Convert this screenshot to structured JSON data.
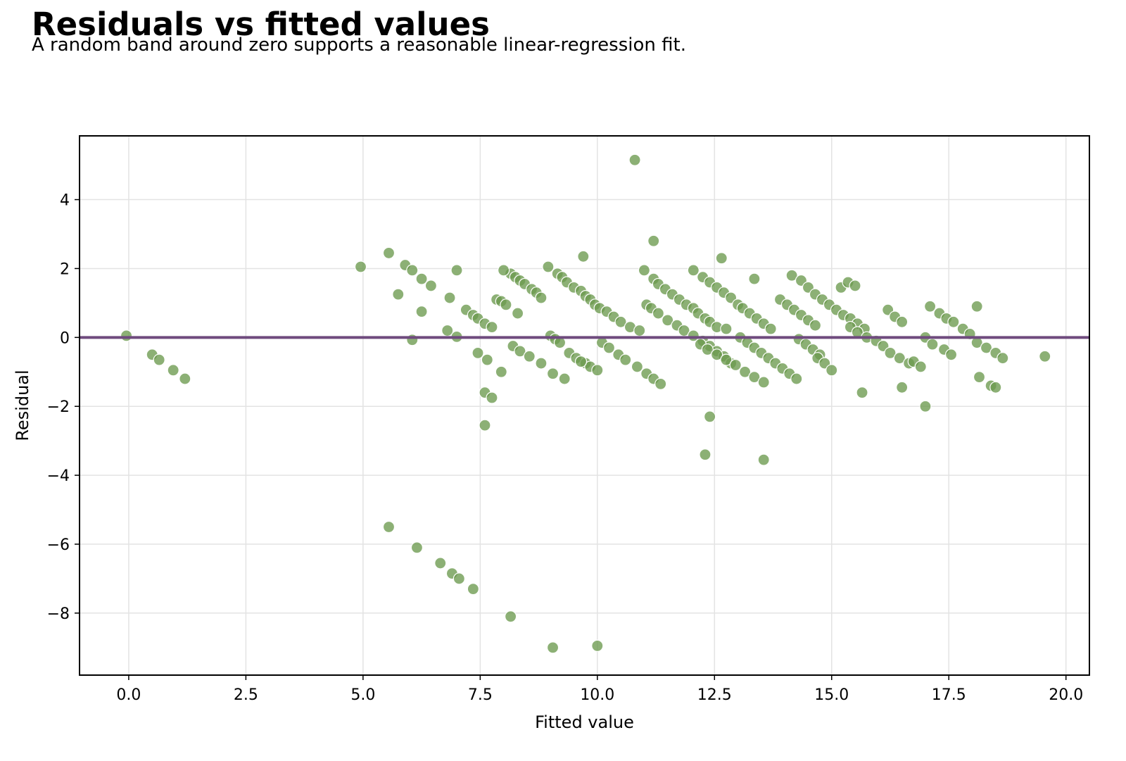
{
  "chart_data": {
    "type": "scatter",
    "title": "Residuals vs fitted values",
    "subtitle": "A random band around zero supports a reasonable linear-regression fit.",
    "xlabel": "Fitted value",
    "ylabel": "Residual",
    "xlim": [
      -1.05,
      20.5
    ],
    "ylim": [
      -9.8,
      5.85
    ],
    "xticks": [
      0.0,
      2.5,
      5.0,
      7.5,
      10.0,
      12.5,
      15.0,
      17.5,
      20.0
    ],
    "xtick_labels": [
      "0.0",
      "2.5",
      "5.0",
      "7.5",
      "10.0",
      "12.5",
      "15.0",
      "17.5",
      "20.0"
    ],
    "yticks": [
      -8,
      -6,
      -4,
      -2,
      0,
      2,
      4
    ],
    "ytick_labels": [
      "−8",
      "−6",
      "−4",
      "−2",
      "0",
      "2",
      "4"
    ],
    "grid": true,
    "reference_line": {
      "y": 0,
      "color": "#6f4b7e"
    },
    "point_color": "#6b9a4e",
    "x": [
      -0.05,
      0.5,
      0.65,
      0.95,
      1.2,
      4.95,
      5.55,
      5.75,
      5.9,
      6.05,
      6.25,
      6.45,
      6.05,
      6.25,
      6.8,
      6.85,
      7.0,
      7.0,
      7.2,
      7.35,
      7.45,
      7.6,
      7.75,
      7.45,
      7.65,
      7.6,
      7.75,
      7.6,
      7.85,
      7.95,
      8.05,
      8.15,
      8.25,
      8.35,
      8.45,
      8.6,
      8.7,
      8.8,
      7.95,
      8.2,
      8.35,
      8.55,
      8.8,
      9.05,
      9.3,
      8.0,
      8.3,
      8.95,
      9.15,
      9.25,
      9.35,
      9.5,
      9.65,
      9.75,
      9.85,
      9.95,
      10.05,
      10.2,
      10.35,
      10.5,
      10.7,
      10.9,
      9.0,
      9.1,
      9.2,
      9.4,
      9.55,
      9.75,
      9.85,
      10.0,
      10.1,
      10.25,
      10.45,
      10.6,
      10.85,
      11.05,
      11.2,
      11.35,
      9.7,
      9.65,
      11.0,
      11.2,
      11.3,
      11.45,
      11.6,
      11.75,
      11.9,
      12.05,
      12.15,
      12.3,
      12.4,
      12.55,
      11.05,
      11.15,
      11.3,
      11.5,
      11.7,
      11.85,
      12.05,
      12.25,
      12.4,
      12.55,
      12.7,
      12.85,
      10.8,
      11.2,
      12.05,
      12.25,
      12.4,
      12.55,
      12.7,
      12.85,
      13.0,
      13.1,
      13.25,
      13.4,
      13.55,
      13.7,
      12.2,
      12.35,
      12.55,
      12.75,
      12.95,
      13.15,
      13.35,
      13.55,
      12.65,
      12.75,
      13.05,
      13.2,
      13.35,
      13.5,
      13.65,
      13.8,
      13.95,
      14.1,
      14.25,
      13.9,
      14.05,
      14.2,
      14.35,
      14.5,
      14.65,
      13.35,
      14.15,
      14.35,
      14.5,
      14.65,
      14.8,
      14.95,
      15.1,
      15.25,
      15.4,
      15.55,
      15.7,
      14.3,
      14.45,
      14.6,
      14.75,
      14.7,
      14.85,
      15.0,
      15.2,
      15.4,
      15.55,
      15.75,
      15.95,
      16.1,
      16.25,
      16.45,
      16.65,
      15.35,
      15.5,
      16.2,
      16.35,
      16.5,
      16.75,
      16.9,
      17.1,
      17.3,
      17.45,
      17.6,
      17.8,
      17.95,
      18.1,
      18.3,
      18.5,
      18.65,
      17.0,
      17.15,
      17.4,
      17.55,
      18.15,
      18.4,
      18.5,
      18.1,
      19.55,
      12.3,
      12.4,
      13.55,
      15.65,
      16.5,
      17.0,
      5.55,
      6.15,
      6.65,
      6.9,
      7.05,
      7.35,
      8.15,
      9.05,
      10.0
    ],
    "y": [
      0.05,
      -0.5,
      -0.65,
      -0.95,
      -1.2,
      2.05,
      2.45,
      1.25,
      2.1,
      1.95,
      1.7,
      1.5,
      -0.07,
      0.75,
      0.2,
      1.15,
      1.95,
      0.02,
      0.8,
      0.65,
      0.55,
      0.4,
      0.3,
      -0.45,
      -0.65,
      -1.6,
      -1.75,
      -2.55,
      1.1,
      1.05,
      0.95,
      1.85,
      1.75,
      1.65,
      1.55,
      1.4,
      1.3,
      1.15,
      -1.0,
      -0.25,
      -0.4,
      -0.55,
      -0.75,
      -1.05,
      -1.2,
      1.95,
      0.7,
      2.05,
      1.85,
      1.75,
      1.6,
      1.45,
      1.35,
      1.2,
      1.1,
      0.95,
      0.85,
      0.75,
      0.6,
      0.45,
      0.3,
      0.2,
      0.05,
      -0.05,
      -0.15,
      -0.45,
      -0.6,
      -0.75,
      -0.85,
      -0.95,
      -0.15,
      -0.3,
      -0.5,
      -0.65,
      -0.85,
      -1.05,
      -1.2,
      -1.35,
      2.35,
      -0.7,
      1.95,
      1.7,
      1.55,
      1.4,
      1.25,
      1.1,
      0.95,
      0.85,
      0.7,
      0.55,
      0.45,
      0.3,
      0.95,
      0.85,
      0.7,
      0.5,
      0.35,
      0.2,
      0.05,
      -0.1,
      -0.25,
      -0.4,
      -0.55,
      -0.75,
      5.15,
      2.8,
      1.95,
      1.75,
      1.6,
      1.45,
      1.3,
      1.15,
      0.95,
      0.85,
      0.7,
      0.55,
      0.4,
      0.25,
      -0.2,
      -0.35,
      -0.5,
      -0.65,
      -0.8,
      -1.0,
      -1.15,
      -1.3,
      2.3,
      0.25,
      0.0,
      -0.15,
      -0.3,
      -0.45,
      -0.6,
      -0.75,
      -0.9,
      -1.05,
      -1.2,
      1.1,
      0.95,
      0.8,
      0.65,
      0.5,
      0.35,
      1.7,
      1.8,
      1.65,
      1.45,
      1.25,
      1.1,
      0.95,
      0.8,
      0.65,
      0.55,
      0.4,
      0.25,
      -0.05,
      -0.2,
      -0.35,
      -0.5,
      -0.6,
      -0.75,
      -0.95,
      1.45,
      0.3,
      0.15,
      0.0,
      -0.1,
      -0.25,
      -0.45,
      -0.6,
      -0.75,
      1.6,
      1.5,
      0.8,
      0.6,
      0.45,
      -0.7,
      -0.85,
      0.9,
      0.7,
      0.55,
      0.45,
      0.25,
      0.1,
      -0.15,
      -0.3,
      -0.45,
      -0.6,
      0.0,
      -0.2,
      -0.35,
      -0.5,
      -1.15,
      -1.4,
      -1.45,
      0.9,
      -0.55,
      -3.4,
      -2.3,
      -3.55,
      -1.6,
      -1.45,
      -2.0,
      -5.5,
      -6.1,
      -6.55,
      -6.85,
      -7.0,
      -7.3,
      -8.1,
      -9.0,
      -8.95
    ]
  }
}
